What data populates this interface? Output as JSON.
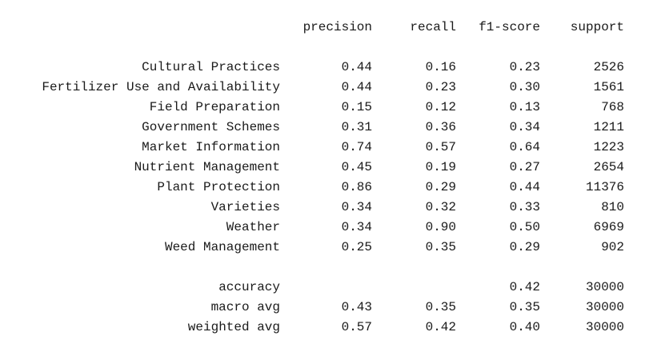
{
  "report": {
    "header": {
      "precision": "precision",
      "recall": "recall",
      "f1": "f1-score",
      "support": "support"
    },
    "classes": [
      {
        "label": "Cultural Practices",
        "precision": "0.44",
        "recall": "0.16",
        "f1": "0.23",
        "support": "2526"
      },
      {
        "label": "Fertilizer Use and Availability",
        "precision": "0.44",
        "recall": "0.23",
        "f1": "0.30",
        "support": "1561"
      },
      {
        "label": "Field Preparation",
        "precision": "0.15",
        "recall": "0.12",
        "f1": "0.13",
        "support": "768"
      },
      {
        "label": "Government Schemes",
        "precision": "0.31",
        "recall": "0.36",
        "f1": "0.34",
        "support": "1211"
      },
      {
        "label": "Market Information",
        "precision": "0.74",
        "recall": "0.57",
        "f1": "0.64",
        "support": "1223"
      },
      {
        "label": "Nutrient Management",
        "precision": "0.45",
        "recall": "0.19",
        "f1": "0.27",
        "support": "2654"
      },
      {
        "label": "Plant Protection",
        "precision": "0.86",
        "recall": "0.29",
        "f1": "0.44",
        "support": "11376"
      },
      {
        "label": "Varieties",
        "precision": "0.34",
        "recall": "0.32",
        "f1": "0.33",
        "support": "810"
      },
      {
        "label": "Weather",
        "precision": "0.34",
        "recall": "0.90",
        "f1": "0.50",
        "support": "6969"
      },
      {
        "label": "Weed Management",
        "precision": "0.25",
        "recall": "0.35",
        "f1": "0.29",
        "support": "902"
      }
    ],
    "accuracy": {
      "label": "accuracy",
      "f1": "0.42",
      "support": "30000"
    },
    "macro_avg": {
      "label": "macro avg",
      "precision": "0.43",
      "recall": "0.35",
      "f1": "0.35",
      "support": "30000"
    },
    "weighted_avg": {
      "label": "weighted avg",
      "precision": "0.57",
      "recall": "0.42",
      "f1": "0.40",
      "support": "30000"
    }
  }
}
